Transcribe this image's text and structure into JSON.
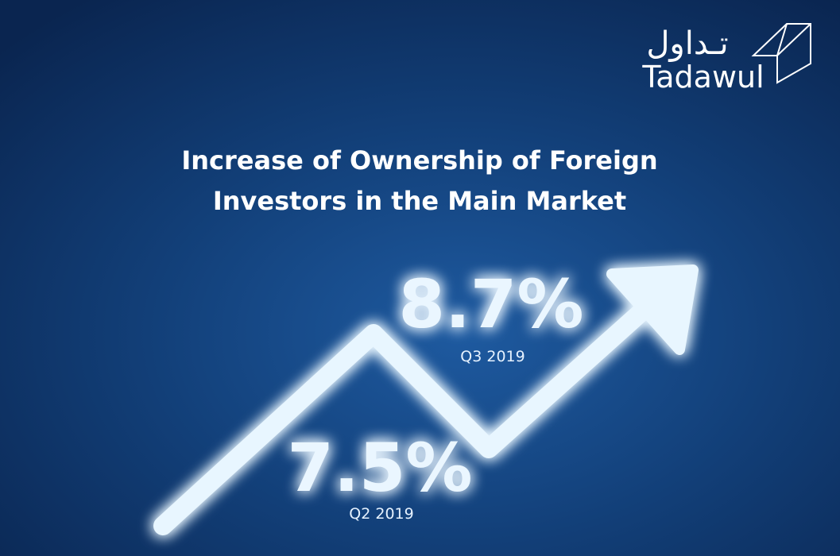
{
  "logo": {
    "arabic": "تـداول",
    "latin": "Tadawul"
  },
  "title": {
    "line1": "Increase of Ownership of Foreign",
    "line2": "Investors in the Main Market"
  },
  "stats": [
    {
      "value": "8.7%",
      "period": "Q3 2019"
    },
    {
      "value": "7.5%",
      "period": "Q2 2019"
    }
  ]
}
